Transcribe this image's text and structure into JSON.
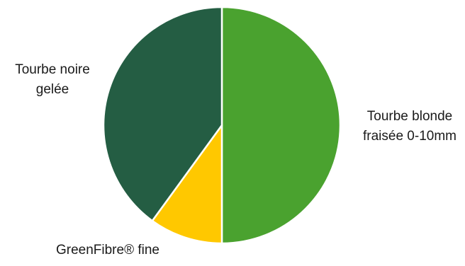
{
  "chart_data": {
    "type": "pie",
    "title": "",
    "slices": [
      {
        "label": "Tourbe blonde fraisée 0-10mm",
        "value": 50,
        "color": "#4aa22f"
      },
      {
        "label": "GreenFibre® fine",
        "value": 10,
        "color": "#ffc800"
      },
      {
        "label": "Tourbe noire gelée",
        "value": 40,
        "color": "#245d43"
      }
    ],
    "legend": "none",
    "data_labels": "category-name"
  }
}
